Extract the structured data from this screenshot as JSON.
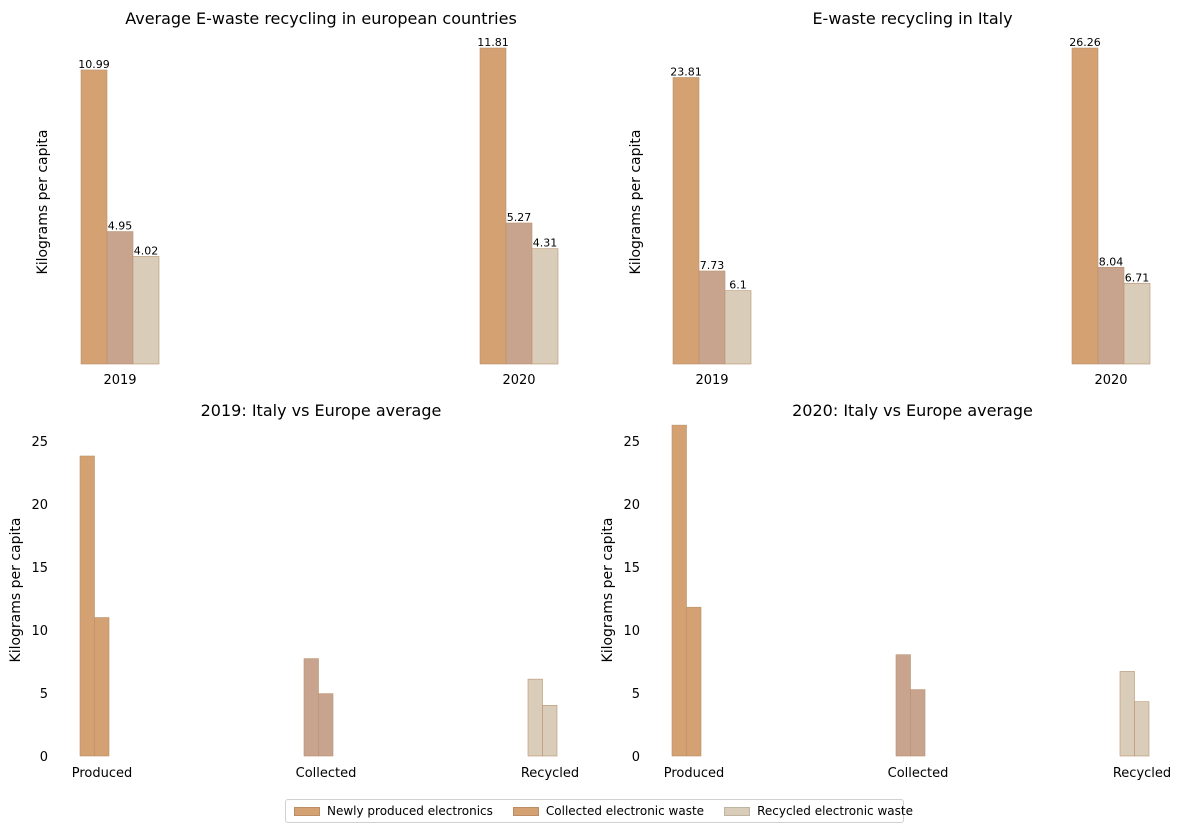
{
  "colors": {
    "produced": "#d4a172",
    "collected": "#c8a48f",
    "recycled": "#d9cdb9",
    "legend_collected": "#d4a172",
    "edge": "#b8936f"
  },
  "legend": {
    "items": [
      {
        "label": "Newly produced electronics",
        "color": "#d4a172"
      },
      {
        "label": "Collected electronic waste",
        "color": "#d4a172"
      },
      {
        "label": "Recycled electronic waste",
        "color": "#d9cdb9"
      }
    ]
  },
  "chart_data": [
    {
      "type": "bar",
      "title": "Average E-waste recycling in european countries",
      "ylabel": "Kilograms per capita",
      "categories": [
        "2019",
        "2020"
      ],
      "series": [
        {
          "name": "Newly produced electronics",
          "values": [
            10.99,
            11.81
          ]
        },
        {
          "name": "Collected electronic waste",
          "values": [
            4.95,
            5.27
          ]
        },
        {
          "name": "Recycled electronic waste",
          "values": [
            4.02,
            4.31
          ]
        }
      ],
      "data_labels": true,
      "yaxis_visible": false,
      "ylim": [
        0,
        11.81
      ]
    },
    {
      "type": "bar",
      "title": "E-waste recycling in Italy",
      "ylabel": "Kilograms per capita",
      "categories": [
        "2019",
        "2020"
      ],
      "series": [
        {
          "name": "Newly produced electronics",
          "values": [
            23.81,
            26.26
          ]
        },
        {
          "name": "Collected electronic waste",
          "values": [
            7.73,
            8.04
          ]
        },
        {
          "name": "Recycled electronic waste",
          "values": [
            6.1,
            6.71
          ]
        }
      ],
      "data_labels": true,
      "yaxis_visible": false,
      "ylim": [
        0,
        26.26
      ]
    },
    {
      "type": "bar",
      "title": "2019: Italy vs Europe average",
      "ylabel": "Kilograms per capita",
      "categories": [
        "Produced",
        "Collected",
        "Recycled"
      ],
      "values_italy": [
        23.81,
        7.73,
        6.1
      ],
      "values_europe": [
        10.99,
        4.95,
        4.02
      ],
      "ylim": [
        0,
        25
      ],
      "yticks": [
        0,
        5,
        10,
        15,
        20,
        25
      ]
    },
    {
      "type": "bar",
      "title": "2020: Italy vs Europe average",
      "ylabel": "Kilograms per capita",
      "categories": [
        "Produced",
        "Collected",
        "Recycled"
      ],
      "values_italy": [
        26.26,
        8.04,
        6.71
      ],
      "values_europe": [
        11.81,
        5.27,
        4.31
      ],
      "ylim": [
        0,
        26.26
      ],
      "yticks": [
        0,
        5,
        10,
        15,
        20,
        25
      ]
    }
  ]
}
